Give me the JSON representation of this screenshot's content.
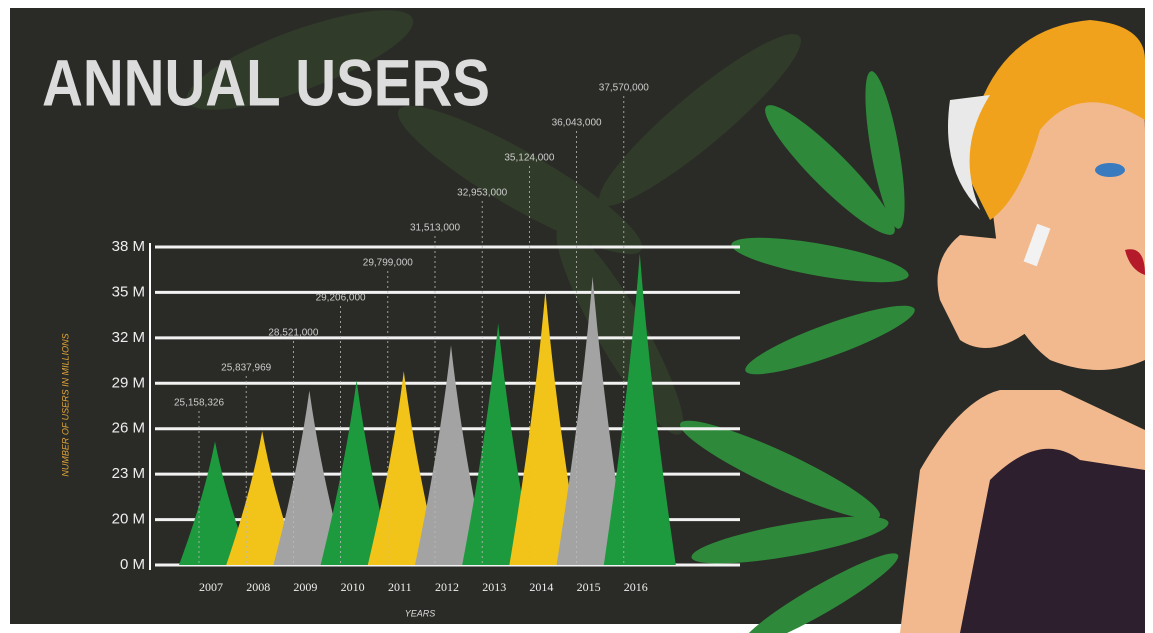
{
  "chart_data": {
    "type": "spike",
    "title": "ANNUAL USERS",
    "x_label": "YEARS",
    "y_label": "NUMBER OF USERS IN MILLIONS",
    "categories": [
      "2007",
      "2008",
      "2009",
      "2010",
      "2011",
      "2012",
      "2013",
      "2014",
      "2015",
      "2016"
    ],
    "values": [
      25158326,
      25837969,
      28521000,
      29206000,
      29799000,
      31513000,
      32953000,
      35124000,
      36043000,
      37570000
    ],
    "value_labels": [
      "25,158,326",
      "25,837,969",
      "28,521,000",
      "29,206,000",
      "29,799,000",
      "31,513,000",
      "32,953,000",
      "35,124,000",
      "36,043,000",
      "37,570,000"
    ],
    "colors": [
      "#1e9a3e",
      "#f2c318",
      "#a3a3a3",
      "#1e9a3e",
      "#f2c318",
      "#a3a3a3",
      "#1e9a3e",
      "#f2c318",
      "#a3a3a3",
      "#1e9a3e"
    ],
    "ylim": [
      0,
      38000000
    ],
    "yticks": [
      {
        "value": 0,
        "label": "0 M"
      },
      {
        "value": 20000000,
        "label": "20 M"
      },
      {
        "value": 23000000,
        "label": "23 M"
      },
      {
        "value": 26000000,
        "label": "26 M"
      },
      {
        "value": 29000000,
        "label": "29 M"
      },
      {
        "value": 32000000,
        "label": "32 M"
      },
      {
        "value": 35000000,
        "label": "35 M"
      },
      {
        "value": 38000000,
        "label": "38 M"
      }
    ],
    "grid": true
  }
}
